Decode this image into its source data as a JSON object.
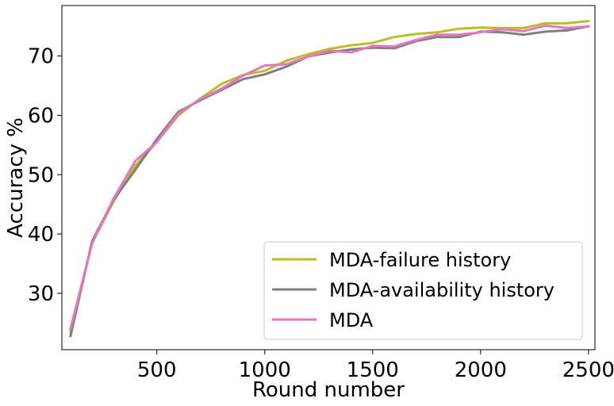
{
  "chart_data": {
    "type": "line",
    "title": "",
    "xlabel": "Round number",
    "ylabel": "Accuracy %",
    "xlim": [
      60,
      2530
    ],
    "ylim": [
      20.5,
      78.5
    ],
    "xticks": [
      500,
      1000,
      1500,
      2000,
      2500
    ],
    "yticks": [
      30,
      40,
      50,
      60,
      70
    ],
    "grid": false,
    "legend": "bottom-right",
    "x": [
      100,
      200,
      300,
      400,
      500,
      600,
      700,
      800,
      900,
      1000,
      1100,
      1200,
      1300,
      1400,
      1500,
      1600,
      1700,
      1800,
      1900,
      2000,
      2100,
      2200,
      2300,
      2400,
      2500
    ],
    "series": [
      {
        "name": "MDA-failure history",
        "color": "#bcbd22",
        "values": [
          23.5,
          38.5,
          45.5,
          51.5,
          55.5,
          60.0,
          62.8,
          65.3,
          66.8,
          67.5,
          69.2,
          70.3,
          71.2,
          71.8,
          72.2,
          73.2,
          73.7,
          74.0,
          74.6,
          74.8,
          74.7,
          74.7,
          75.5,
          75.5,
          75.9
        ]
      },
      {
        "name": "MDA-availability history",
        "color": "#7f7f7f",
        "values": [
          22.8,
          38.8,
          45.8,
          50.8,
          56.0,
          60.6,
          62.5,
          64.3,
          66.1,
          66.9,
          68.2,
          69.9,
          70.6,
          71.1,
          71.4,
          71.3,
          72.5,
          73.2,
          73.2,
          74.1,
          74.0,
          73.6,
          74.1,
          74.3,
          75.0
        ]
      },
      {
        "name": "MDA",
        "color": "#e377c2",
        "values": [
          24.0,
          38.4,
          46.0,
          52.3,
          55.5,
          60.3,
          62.7,
          64.5,
          66.7,
          68.4,
          68.6,
          69.9,
          70.9,
          70.6,
          71.7,
          71.6,
          72.7,
          73.6,
          73.6,
          74.0,
          74.5,
          74.2,
          75.1,
          74.7,
          75.0
        ]
      }
    ]
  }
}
